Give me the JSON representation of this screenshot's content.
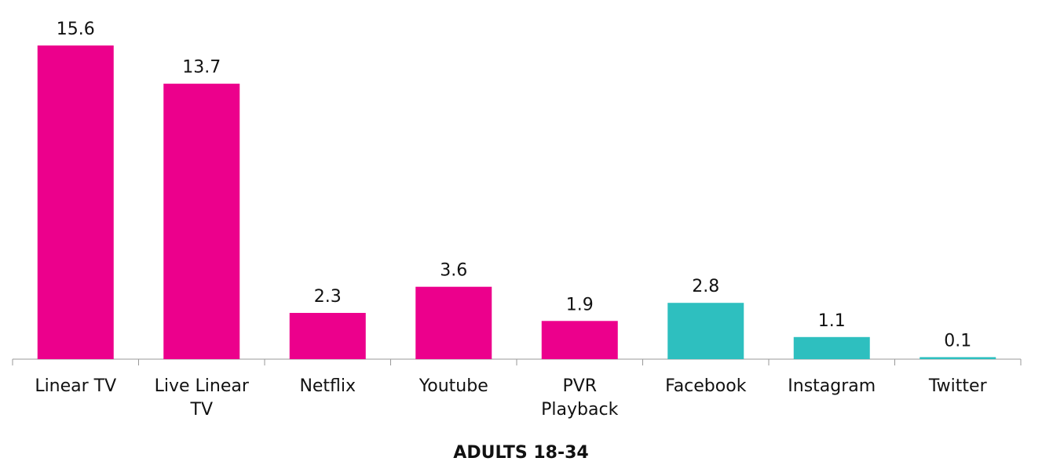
{
  "chart_data": {
    "type": "bar",
    "xlabel": "ADULTS 18-34",
    "categories": [
      "Linear TV",
      "Live Linear TV",
      "Netflix",
      "Youtube",
      "PVR Playback",
      "Facebook",
      "Instagram",
      "Twitter"
    ],
    "values": [
      15.6,
      13.7,
      2.3,
      3.6,
      1.9,
      2.8,
      1.1,
      0.1
    ],
    "colors": [
      "#ec008c",
      "#ec008c",
      "#ec008c",
      "#ec008c",
      "#ec008c",
      "#2ebfbf",
      "#2ebfbf",
      "#2ebfbf"
    ]
  }
}
